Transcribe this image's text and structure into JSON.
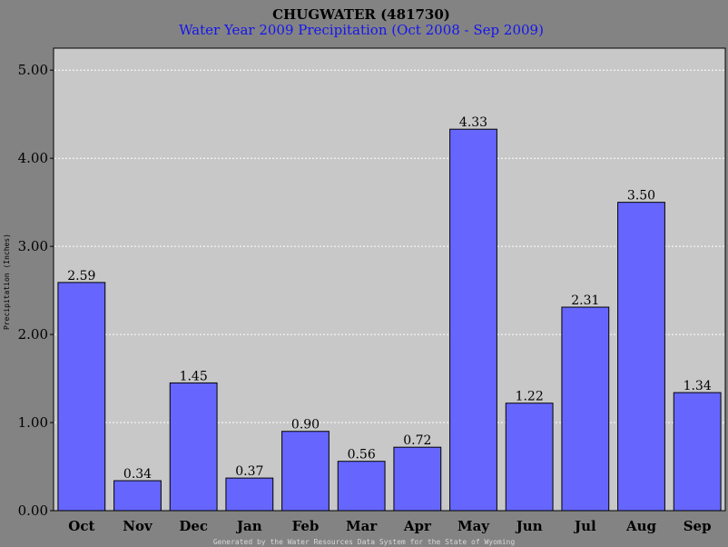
{
  "chart_data": {
    "type": "bar",
    "title": "CHUGWATER (481730)",
    "subtitle": "Water Year 2009 Precipitation (Oct 2008 - Sep 2009)",
    "ylabel": "Precipitation (Inches)",
    "xlabel": "",
    "categories": [
      "Oct",
      "Nov",
      "Dec",
      "Jan",
      "Feb",
      "Mar",
      "Apr",
      "May",
      "Jun",
      "Jul",
      "Aug",
      "Sep"
    ],
    "values": [
      2.59,
      0.34,
      1.45,
      0.37,
      0.9,
      0.56,
      0.72,
      4.33,
      1.22,
      2.31,
      3.5,
      1.34
    ],
    "data_labels": [
      "2.59",
      "0.34",
      "1.45",
      "0.37",
      "0.90",
      "0.56",
      "0.72",
      "4.33",
      "1.22",
      "2.31",
      "3.50",
      "1.34"
    ],
    "ylim": [
      0,
      5.25
    ],
    "yticks": [
      0,
      1,
      2,
      3,
      4,
      5
    ],
    "ytick_labels": [
      "0.00",
      "1.00",
      "2.00",
      "3.00",
      "4.00",
      "5.00"
    ],
    "grid": true,
    "colors": {
      "background": "#838383",
      "plot_area": "#c8c8c8",
      "bar_fill": "#6666ff",
      "bar_stroke": "#000000",
      "gridline": "#ffffff",
      "subtitle": "#1515ee"
    }
  },
  "footer": "Generated by the Water Resources Data System for the State of Wyoming"
}
